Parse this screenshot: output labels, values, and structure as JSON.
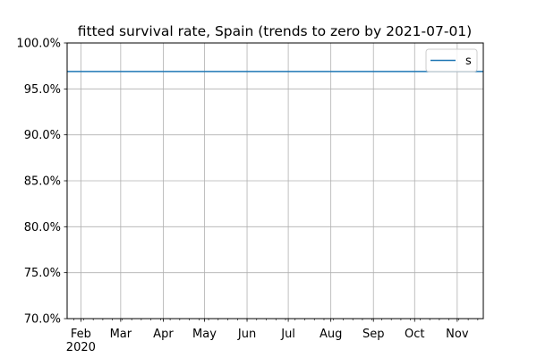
{
  "chart_data": {
    "type": "line",
    "title": "fitted survival rate, Spain (trends to zero by 2021-07-01)",
    "xlabel": "",
    "ylabel": "",
    "x_type": "date",
    "xlim": [
      "2020-01-22",
      "2020-11-20"
    ],
    "ylim": [
      0.7,
      1.0
    ],
    "y_ticks": [
      0.7,
      0.75,
      0.8,
      0.85,
      0.9,
      0.95,
      1.0
    ],
    "y_tick_labels": [
      "70.0%",
      "75.0%",
      "80.0%",
      "85.0%",
      "90.0%",
      "95.0%",
      "100.0%"
    ],
    "x_ticks": [
      "2020-02-01",
      "2020-03-01",
      "2020-04-01",
      "2020-05-01",
      "2020-06-01",
      "2020-07-01",
      "2020-08-01",
      "2020-09-01",
      "2020-10-01",
      "2020-11-01"
    ],
    "x_tick_labels": [
      "Feb",
      "Mar",
      "Apr",
      "May",
      "Jun",
      "Jul",
      "Aug",
      "Sep",
      "Oct",
      "Nov"
    ],
    "x_year_label": "2020",
    "grid": true,
    "legend_position": "top-right",
    "colors": {
      "line": "#1f77b4",
      "grid": "#b0b0b0",
      "axis": "#000000"
    },
    "series": [
      {
        "name": "s",
        "x": [
          "2020-01-22",
          "2020-11-20"
        ],
        "values": [
          0.969,
          0.969
        ]
      }
    ]
  }
}
